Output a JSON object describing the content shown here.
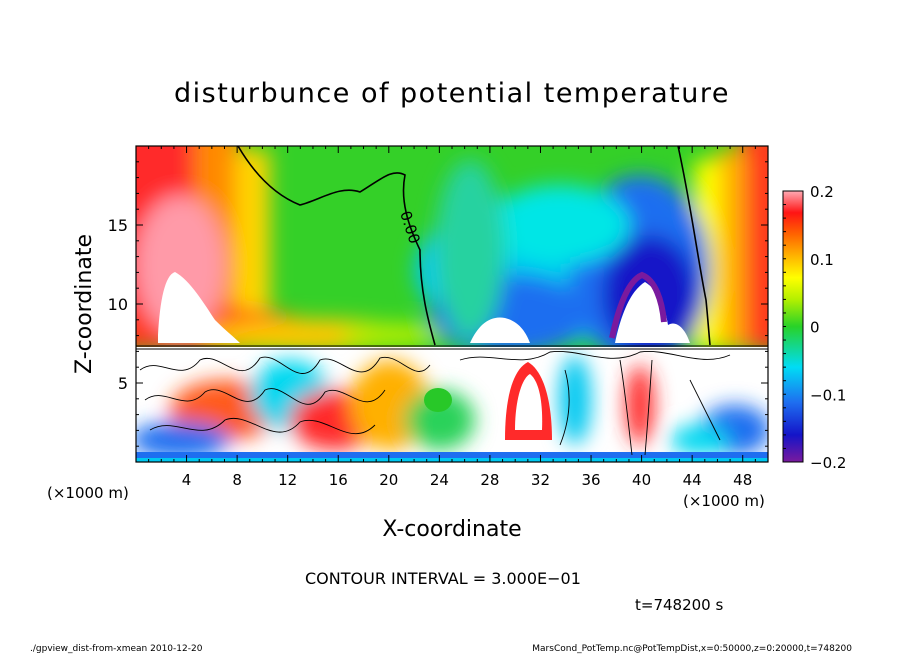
{
  "chart_data": {
    "type": "heatmap",
    "title": "disturbunce of potential temperature",
    "xlabel": "X-coordinate",
    "ylabel": "Z-coordinate",
    "x_unit_left": "(×1000 m)",
    "x_unit_right": "(×1000 m)",
    "xlim": [
      0,
      50
    ],
    "ylim": [
      0,
      20
    ],
    "x_ticks": [
      "4",
      "8",
      "12",
      "16",
      "20",
      "24",
      "28",
      "32",
      "36",
      "40",
      "44",
      "48"
    ],
    "y_ticks": [
      "5",
      "10",
      "15"
    ],
    "colorbar": {
      "range": [
        -0.2,
        0.2
      ],
      "ticks": [
        "0.2",
        "0.1",
        "0",
        "−0.1",
        "−0.2"
      ]
    },
    "contour_label": "0.00",
    "contour_interval_text": "CONTOUR INTERVAL = 3.000E−01",
    "time_text": "t=748200 s",
    "colors": {
      "min": "#7a1a9e",
      "max": "#ffffff",
      "zero": "#33cc33",
      "negative": "#1e3cf0",
      "positive": "#ff2a1a"
    }
  },
  "footer": {
    "left": "./gpview_dist-from-xmean  2010-12-20",
    "right": "MarsCond_PotTemp.nc@PotTempDist,x=0:50000,z=0:20000,t=748200"
  }
}
